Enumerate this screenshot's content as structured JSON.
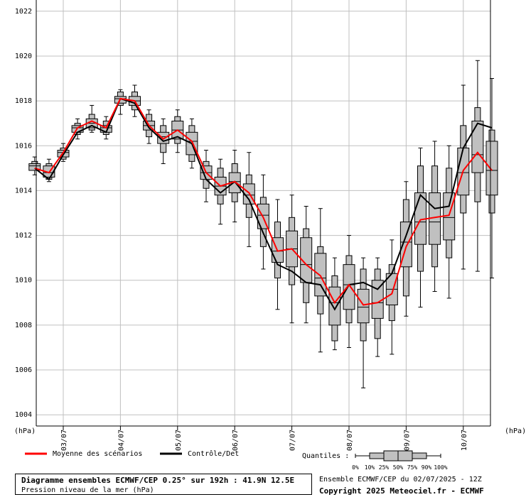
{
  "chart_data": {
    "type": "boxplot",
    "y_unit_left": "(hPa)",
    "y_unit_right": "(hPa)",
    "ylim": [
      1003.5,
      1022.5
    ],
    "yticks": [
      1004,
      1006,
      1008,
      1010,
      1012,
      1014,
      1016,
      1018,
      1020,
      1022
    ],
    "date_labels": [
      "03/07",
      "04/07",
      "05/07",
      "06/07",
      "07/07",
      "08/07",
      "09/07",
      "10/07"
    ],
    "date_label_steps": [
      2,
      6,
      10,
      14,
      18,
      22,
      26,
      30
    ],
    "step_hours": 6,
    "steps_count": 33,
    "legend": {
      "mean_label": "Moyenne des scénarios",
      "mean_color": "#ff0000",
      "control_label": "Contrôle/Det",
      "control_color": "#000000",
      "quantiles_label": "Quantiles :",
      "quantiles_ticks": [
        "0%",
        "10%",
        "25%",
        "50%",
        "75%",
        "90%",
        "100%"
      ]
    },
    "ensemble": [
      {
        "min": 1014.7,
        "p10": 1014.9,
        "p25": 1014.9,
        "med": 1015.1,
        "p75": 1015.2,
        "p90": 1015.3,
        "max": 1015.5
      },
      {
        "min": 1014.4,
        "p10": 1014.5,
        "p25": 1014.6,
        "med": 1014.8,
        "p75": 1015.1,
        "p90": 1015.2,
        "max": 1015.4
      },
      {
        "min": 1015.3,
        "p10": 1015.4,
        "p25": 1015.5,
        "med": 1015.7,
        "p75": 1015.8,
        "p90": 1015.9,
        "max": 1016.1
      },
      {
        "min": 1016.3,
        "p10": 1016.5,
        "p25": 1016.6,
        "med": 1016.8,
        "p75": 1016.9,
        "p90": 1017.0,
        "max": 1017.2
      },
      {
        "min": 1016.6,
        "p10": 1016.7,
        "p25": 1016.8,
        "med": 1017.0,
        "p75": 1017.2,
        "p90": 1017.4,
        "max": 1017.8
      },
      {
        "min": 1016.3,
        "p10": 1016.5,
        "p25": 1016.6,
        "med": 1016.8,
        "p75": 1016.9,
        "p90": 1017.1,
        "max": 1017.3
      },
      {
        "min": 1017.4,
        "p10": 1017.8,
        "p25": 1017.9,
        "med": 1018.1,
        "p75": 1018.2,
        "p90": 1018.4,
        "max": 1018.5
      },
      {
        "min": 1017.3,
        "p10": 1017.6,
        "p25": 1017.8,
        "med": 1018.0,
        "p75": 1018.2,
        "p90": 1018.4,
        "max": 1018.7
      },
      {
        "min": 1016.1,
        "p10": 1016.4,
        "p25": 1016.7,
        "med": 1016.9,
        "p75": 1017.1,
        "p90": 1017.4,
        "max": 1017.6
      },
      {
        "min": 1015.2,
        "p10": 1015.7,
        "p25": 1016.1,
        "med": 1016.4,
        "p75": 1016.6,
        "p90": 1016.9,
        "max": 1017.2
      },
      {
        "min": 1015.7,
        "p10": 1016.1,
        "p25": 1016.3,
        "med": 1016.7,
        "p75": 1017.1,
        "p90": 1017.3,
        "max": 1017.6
      },
      {
        "min": 1015.0,
        "p10": 1015.3,
        "p25": 1015.6,
        "med": 1016.2,
        "p75": 1016.6,
        "p90": 1016.9,
        "max": 1017.2
      },
      {
        "min": 1013.5,
        "p10": 1014.1,
        "p25": 1014.5,
        "med": 1014.8,
        "p75": 1015.1,
        "p90": 1015.3,
        "max": 1015.8
      },
      {
        "min": 1012.5,
        "p10": 1013.4,
        "p25": 1013.8,
        "med": 1014.2,
        "p75": 1014.6,
        "p90": 1015.0,
        "max": 1015.4
      },
      {
        "min": 1012.6,
        "p10": 1013.5,
        "p25": 1013.9,
        "med": 1014.4,
        "p75": 1014.8,
        "p90": 1015.2,
        "max": 1015.8
      },
      {
        "min": 1011.5,
        "p10": 1012.8,
        "p25": 1013.4,
        "med": 1013.8,
        "p75": 1014.3,
        "p90": 1014.7,
        "max": 1015.7
      },
      {
        "min": 1010.5,
        "p10": 1011.5,
        "p25": 1012.3,
        "med": 1012.9,
        "p75": 1013.4,
        "p90": 1013.7,
        "max": 1014.7
      },
      {
        "min": 1008.7,
        "p10": 1010.1,
        "p25": 1010.8,
        "med": 1011.3,
        "p75": 1011.9,
        "p90": 1012.6,
        "max": 1013.6
      },
      {
        "min": 1008.1,
        "p10": 1009.8,
        "p25": 1010.6,
        "med": 1011.4,
        "p75": 1012.2,
        "p90": 1012.8,
        "max": 1013.8
      },
      {
        "min": 1008.1,
        "p10": 1009.0,
        "p25": 1009.9,
        "med": 1010.7,
        "p75": 1011.9,
        "p90": 1012.3,
        "max": 1013.3
      },
      {
        "min": 1006.8,
        "p10": 1008.5,
        "p25": 1009.3,
        "med": 1010.1,
        "p75": 1011.2,
        "p90": 1011.5,
        "max": 1013.2
      },
      {
        "min": 1006.9,
        "p10": 1007.3,
        "p25": 1008.0,
        "med": 1009.0,
        "p75": 1009.7,
        "p90": 1010.2,
        "max": 1011.0
      },
      {
        "min": 1007.0,
        "p10": 1008.1,
        "p25": 1008.7,
        "med": 1009.8,
        "p75": 1010.7,
        "p90": 1011.1,
        "max": 1012.0
      },
      {
        "min": 1005.2,
        "p10": 1007.3,
        "p25": 1008.1,
        "med": 1008.8,
        "p75": 1009.6,
        "p90": 1010.5,
        "max": 1011.0
      },
      {
        "min": 1006.6,
        "p10": 1007.4,
        "p25": 1008.3,
        "med": 1009.0,
        "p75": 1010.0,
        "p90": 1010.5,
        "max": 1011.0
      },
      {
        "min": 1006.7,
        "p10": 1008.2,
        "p25": 1008.9,
        "med": 1009.6,
        "p75": 1010.3,
        "p90": 1010.7,
        "max": 1011.8
      },
      {
        "min": 1008.4,
        "p10": 1009.3,
        "p25": 1010.6,
        "med": 1011.7,
        "p75": 1012.6,
        "p90": 1013.6,
        "max": 1014.4
      },
      {
        "min": 1008.8,
        "p10": 1010.4,
        "p25": 1011.6,
        "med": 1012.6,
        "p75": 1013.9,
        "p90": 1015.1,
        "max": 1015.9
      },
      {
        "min": 1009.5,
        "p10": 1010.6,
        "p25": 1011.6,
        "med": 1012.6,
        "p75": 1013.9,
        "p90": 1015.1,
        "max": 1016.2
      },
      {
        "min": 1009.2,
        "p10": 1011.0,
        "p25": 1011.8,
        "med": 1012.8,
        "p75": 1013.9,
        "p90": 1015.0,
        "max": 1016.0
      },
      {
        "min": 1010.5,
        "p10": 1013.0,
        "p25": 1013.8,
        "med": 1014.8,
        "p75": 1015.9,
        "p90": 1016.9,
        "max": 1018.7
      },
      {
        "min": 1010.4,
        "p10": 1013.5,
        "p25": 1014.8,
        "med": 1015.6,
        "p75": 1017.1,
        "p90": 1017.7,
        "max": 1019.8
      },
      {
        "min": 1010.1,
        "p10": 1013.0,
        "p25": 1013.8,
        "med": 1014.9,
        "p75": 1016.2,
        "p90": 1016.7,
        "max": 1019.0
      }
    ],
    "mean": [
      1015.0,
      1014.8,
      1015.7,
      1016.8,
      1017.1,
      1016.8,
      1018.1,
      1018.0,
      1016.9,
      1016.3,
      1016.7,
      1016.2,
      1014.8,
      1014.2,
      1014.4,
      1013.9,
      1012.8,
      1011.3,
      1011.4,
      1010.7,
      1010.2,
      1009.0,
      1009.8,
      1008.9,
      1009.0,
      1009.4,
      1011.5,
      1012.7,
      1012.8,
      1012.9,
      1014.9,
      1015.7,
      1014.9
    ],
    "control": [
      1015.0,
      1014.5,
      1015.6,
      1016.6,
      1016.9,
      1016.6,
      1018.1,
      1017.9,
      1016.8,
      1016.2,
      1016.4,
      1016.1,
      1014.5,
      1013.9,
      1014.4,
      1013.6,
      1012.1,
      1010.7,
      1010.4,
      1009.9,
      1009.8,
      1008.7,
      1009.8,
      1009.9,
      1009.6,
      1010.3,
      1012.0,
      1013.8,
      1013.2,
      1013.3,
      1015.9,
      1017.0,
      1016.8
    ]
  },
  "footer": {
    "title": "Diagramme ensembles ECMWF/CEP 0.25° sur 192h : 41.9N 12.5E",
    "subtitle": "Pression niveau de la mer (hPa)",
    "run_info": "Ensemble ECMWF/CEP du 02/07/2025 - 12Z",
    "copyright": "Copyright 2025 Meteociel.fr - ECMWF"
  }
}
